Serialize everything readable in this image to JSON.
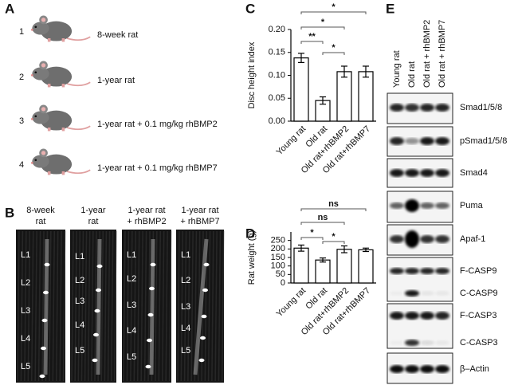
{
  "panel_labels": [
    "A",
    "B",
    "C",
    "D",
    "E"
  ],
  "groups": [
    {
      "number": "1",
      "label": "8-week rat"
    },
    {
      "number": "2",
      "label": "1-year rat"
    },
    {
      "number": "3",
      "label": "1-year rat + 0.1 mg/kg rhBMP2"
    },
    {
      "number": "4",
      "label": "1-year rat + 0.1 mg/kg rhBMP7"
    }
  ],
  "mri": [
    {
      "header": [
        "8-week",
        "rat"
      ],
      "levels": [
        "L1",
        "L2",
        "L3",
        "L4",
        "L5"
      ]
    },
    {
      "header": [
        "1-year",
        "rat"
      ],
      "levels": [
        "L1",
        "L2",
        "L3",
        "L4",
        "L5"
      ]
    },
    {
      "header": [
        "1-year rat",
        "+ rhBMP2"
      ],
      "levels": [
        "L1",
        "L2",
        "L3",
        "L4",
        "L5"
      ]
    },
    {
      "header": [
        "1-year rat",
        "+ rhBMP7"
      ],
      "levels": [
        "L1",
        "L2",
        "L3",
        "L4",
        "L5"
      ]
    }
  ],
  "chart_data": [
    {
      "type": "bar",
      "y_label": "Disc height index",
      "categories": [
        "Young rat",
        "Old rat",
        "Old rat+rhBMP2",
        "Old rat+rhBMP7"
      ],
      "values": [
        0.138,
        0.045,
        0.108,
        0.108
      ],
      "errors": [
        0.01,
        0.008,
        0.012,
        0.012
      ],
      "color": "#ffffff",
      "ylim": [
        0,
        0.2
      ],
      "yticks": [
        {
          "value": 0,
          "label": "0.00"
        },
        {
          "value": 0.05,
          "label": "0.05"
        },
        {
          "value": 0.1,
          "label": "0.10"
        },
        {
          "value": 0.15,
          "label": "0.15"
        },
        {
          "value": 0.2,
          "label": "0.20"
        }
      ],
      "brackets": [
        {
          "label": "*",
          "between": [
            "Young rat",
            "Old rat+rhBMP7"
          ]
        },
        {
          "label": "*",
          "between": [
            "Young rat",
            "Old rat+rhBMP2"
          ]
        },
        {
          "label": "**",
          "between": [
            "Young rat",
            "Old rat"
          ]
        },
        {
          "label": "*",
          "between": [
            "Old rat",
            "Old rat+rhBMP2"
          ]
        }
      ]
    },
    {
      "type": "bar",
      "y_label": "Rat weight (g)",
      "categories": [
        "Young rat",
        "Old rat",
        "Old rat+rhBMP2",
        "Old rat+rhBMP7"
      ],
      "values": [
        205,
        135,
        198,
        195
      ],
      "errors": [
        18,
        12,
        20,
        10
      ],
      "color": "#ffffff",
      "ylim": [
        0,
        300
      ],
      "yticks": [
        0,
        50,
        100,
        150,
        200,
        250
      ],
      "brackets": [
        {
          "label": "ns",
          "between": [
            "Young rat",
            "Old rat+rhBMP7"
          ]
        },
        {
          "label": "ns",
          "between": [
            "Young rat",
            "Old rat+rhBMP2"
          ]
        },
        {
          "label": "*",
          "between": [
            "Young rat",
            "Old rat"
          ]
        },
        {
          "label": "*",
          "between": [
            "Old rat",
            "Old rat+rhBMP2"
          ]
        }
      ]
    }
  ],
  "blot": {
    "columns": [
      "Young rat",
      "Old rat",
      "Old rat + rhBMP2",
      "Old rat + rhBMP7"
    ],
    "proteins": [
      "Smad1/5/8",
      "pSmad1/5/8",
      "Smad4",
      "Puma",
      "Apaf-1",
      "F-CASP9",
      "C-CASP9",
      "F-CASP3",
      "C-CASP3",
      "β–Actin"
    ]
  }
}
